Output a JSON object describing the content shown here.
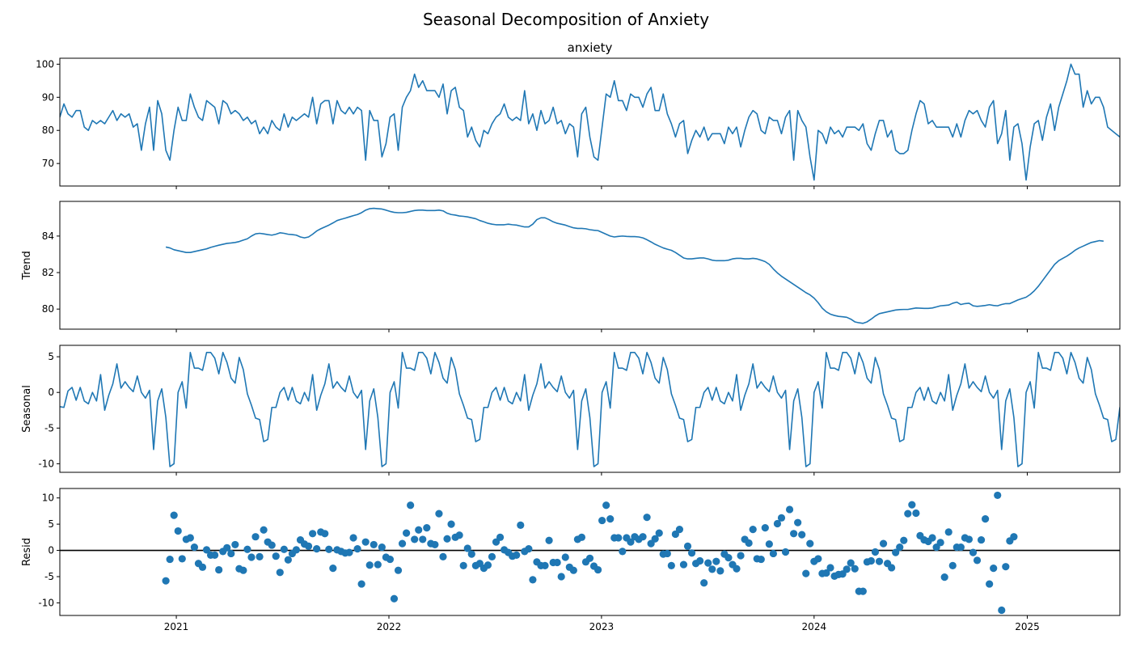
{
  "chart_data": {
    "type": "line",
    "title": "Seasonal Decomposition of Anxiety",
    "x_ticks": [
      "2021",
      "2022",
      "2023",
      "2024",
      "2025"
    ],
    "x_range": [
      "2020-06-15",
      "2025-06-09"
    ],
    "color": "#1f77b4",
    "panels": [
      {
        "key": "observed",
        "title": "anxiety",
        "ylabel": "",
        "type": "line",
        "ylim": [
          63.2,
          101.8
        ],
        "yticks": [
          70,
          80,
          90,
          100
        ],
        "values": [
          84,
          88,
          85,
          84,
          86,
          86,
          81,
          80,
          83,
          82,
          83,
          82,
          84,
          86,
          83,
          85,
          84,
          85,
          81,
          82,
          74,
          82,
          87,
          74,
          89,
          85,
          74,
          71,
          80,
          87,
          83,
          83,
          91,
          87,
          84,
          83,
          89,
          88,
          87,
          82,
          89,
          88,
          85,
          86,
          85,
          83,
          84,
          82,
          83,
          79,
          81,
          79,
          83,
          81,
          80,
          85,
          81,
          84,
          83,
          84,
          85,
          84,
          90,
          82,
          88,
          89,
          89,
          82,
          89,
          86,
          85,
          87,
          85,
          87,
          86,
          71,
          86,
          83,
          83,
          72,
          76,
          84,
          85,
          74,
          87,
          90,
          92,
          97,
          93,
          95,
          92,
          92,
          92,
          90,
          94,
          85,
          92,
          93,
          87,
          86,
          78,
          81,
          77,
          75,
          80,
          79,
          82,
          84,
          85,
          88,
          84,
          83,
          84,
          83,
          92,
          82,
          85,
          80,
          86,
          82,
          83,
          87,
          82,
          83,
          79,
          82,
          81,
          72,
          85,
          87,
          78,
          72,
          71,
          81,
          91,
          90,
          95,
          89,
          89,
          86,
          91,
          90,
          90,
          87,
          91,
          93,
          86,
          86,
          91,
          85,
          82,
          78,
          82,
          83,
          73,
          77,
          80,
          78,
          81,
          77,
          79,
          79,
          79,
          76,
          81,
          79,
          81,
          75,
          80,
          84,
          86,
          85,
          80,
          79,
          84,
          83,
          83,
          79,
          84,
          86,
          71,
          86,
          83,
          81,
          72,
          65,
          80,
          79,
          76,
          81,
          79,
          80,
          78,
          81,
          81,
          81,
          80,
          82,
          76,
          74,
          79,
          83,
          83,
          78,
          80,
          74,
          73,
          73,
          74,
          80,
          85,
          89,
          88,
          82,
          83,
          81,
          81,
          81,
          81,
          78,
          82,
          78,
          83,
          86,
          85,
          86,
          83,
          81,
          87,
          89,
          76,
          79,
          86,
          71,
          81,
          82,
          76,
          65,
          75,
          82,
          83,
          77,
          84,
          88,
          80,
          87,
          91,
          95,
          100,
          97,
          97,
          87,
          92,
          88,
          90,
          90,
          87,
          81,
          80,
          79,
          78,
          81,
          80
        ]
      },
      {
        "key": "trend",
        "ylabel": "Trend",
        "type": "line",
        "ylim": [
          78.9,
          85.9
        ],
        "yticks": [
          80,
          82,
          84
        ],
        "values": [
          null,
          null,
          null,
          null,
          null,
          null,
          null,
          null,
          null,
          null,
          null,
          null,
          null,
          null,
          null,
          null,
          null,
          null,
          null,
          null,
          null,
          null,
          null,
          null,
          null,
          null,
          83.4,
          83.35,
          83.25,
          83.2,
          83.15,
          83.1,
          83.1,
          83.15,
          83.2,
          83.25,
          83.3,
          83.38,
          83.44,
          83.5,
          83.55,
          83.6,
          83.62,
          83.65,
          83.7,
          83.78,
          83.85,
          84.0,
          84.12,
          84.15,
          84.12,
          84.08,
          84.05,
          84.1,
          84.18,
          84.15,
          84.1,
          84.08,
          84.05,
          83.95,
          83.9,
          83.95,
          84.1,
          84.28,
          84.4,
          84.5,
          84.6,
          84.72,
          84.85,
          84.92,
          84.98,
          85.05,
          85.12,
          85.18,
          85.28,
          85.42,
          85.5,
          85.52,
          85.5,
          85.48,
          85.42,
          85.35,
          85.3,
          85.28,
          85.28,
          85.3,
          85.35,
          85.4,
          85.42,
          85.42,
          85.4,
          85.4,
          85.4,
          85.42,
          85.38,
          85.25,
          85.18,
          85.15,
          85.1,
          85.08,
          85.05,
          85.0,
          84.95,
          84.85,
          84.78,
          84.7,
          84.65,
          84.62,
          84.62,
          84.62,
          84.65,
          84.62,
          84.6,
          84.55,
          84.5,
          84.5,
          84.65,
          84.9,
          85.0,
          85.0,
          84.9,
          84.78,
          84.7,
          84.65,
          84.6,
          84.52,
          84.45,
          84.42,
          84.42,
          84.4,
          84.35,
          84.32,
          84.3,
          84.2,
          84.1,
          84.0,
          83.95,
          83.98,
          84.0,
          83.98,
          83.97,
          83.97,
          83.95,
          83.9,
          83.8,
          83.68,
          83.55,
          83.45,
          83.35,
          83.28,
          83.22,
          83.1,
          82.95,
          82.8,
          82.75,
          82.75,
          82.78,
          82.8,
          82.8,
          82.75,
          82.68,
          82.65,
          82.65,
          82.65,
          82.68,
          82.75,
          82.78,
          82.78,
          82.75,
          82.75,
          82.78,
          82.75,
          82.68,
          82.6,
          82.45,
          82.2,
          81.98,
          81.8,
          81.65,
          81.5,
          81.35,
          81.2,
          81.05,
          80.9,
          80.78,
          80.6,
          80.35,
          80.05,
          79.85,
          79.72,
          79.65,
          79.6,
          79.58,
          79.55,
          79.45,
          79.3,
          79.25,
          79.22,
          79.3,
          79.45,
          79.62,
          79.75,
          79.8,
          79.85,
          79.9,
          79.95,
          79.97,
          79.98,
          79.98,
          80.02,
          80.06,
          80.05,
          80.04,
          80.04,
          80.06,
          80.12,
          80.18,
          80.2,
          80.22,
          80.32,
          80.38,
          80.25,
          80.3,
          80.32,
          80.18,
          80.15,
          80.17,
          80.2,
          80.24,
          80.2,
          80.18,
          80.25,
          80.3,
          80.3,
          80.4,
          80.5,
          80.58,
          80.65,
          80.8,
          81.0,
          81.25,
          81.55,
          81.85,
          82.15,
          82.45,
          82.65,
          82.78,
          82.9,
          83.05,
          83.22,
          83.35,
          83.45,
          83.55,
          83.65,
          83.7,
          83.75,
          83.72,
          null,
          null,
          null,
          null,
          null,
          null,
          null,
          null,
          null,
          null,
          null,
          null,
          null,
          null,
          null,
          null,
          null,
          null,
          null,
          null,
          null,
          null,
          null,
          null,
          null,
          null
        ]
      },
      {
        "key": "seasonal",
        "ylabel": "Seasonal",
        "type": "line",
        "ylim": [
          -11.2,
          6.6
        ],
        "yticks": [
          -10,
          -5,
          0,
          5
        ],
        "values": [
          -2.0,
          -2.1,
          0.2,
          0.7,
          -1.1,
          0.7,
          -1.2,
          -1.6,
          0.0,
          -1.2,
          2.5,
          -2.5,
          -0.4,
          1.2,
          4.0,
          0.6,
          1.5,
          0.7,
          0.1,
          2.3,
          0.0,
          -0.8,
          0.3,
          -8.0,
          -1.2,
          0.5,
          -3.5,
          -10.4,
          -10.0,
          0.0,
          1.5,
          -2.2,
          5.6,
          3.4,
          3.4,
          3.1,
          5.6,
          5.6,
          4.8,
          2.6,
          5.6,
          4.2,
          2.0,
          1.3,
          4.9,
          3.2,
          -0.2,
          -1.8,
          -3.6,
          -3.8,
          -6.9,
          -6.6,
          -2.1,
          -2.1,
          0.0,
          0.7,
          -1.1,
          0.7,
          -1.2,
          -1.6,
          0.0,
          -1.2,
          2.5,
          -2.5,
          -0.4,
          1.2,
          4.0,
          0.6,
          1.5,
          0.7,
          0.1,
          2.3,
          0.0,
          -0.8,
          0.3,
          -8.0,
          -1.2,
          0.5,
          -3.5,
          -10.4,
          -10.0,
          0.0,
          1.5,
          -2.2,
          5.6,
          3.4,
          3.4,
          3.1,
          5.6,
          5.6,
          4.8,
          2.6,
          5.6,
          4.2,
          2.0,
          1.3,
          4.9,
          3.2,
          -0.2,
          -1.8,
          -3.6,
          -3.8,
          -6.9,
          -6.6,
          -2.1,
          -2.1,
          0.0,
          0.7,
          -1.1,
          0.7,
          -1.2,
          -1.6,
          0.0,
          -1.2,
          2.5,
          -2.5,
          -0.4,
          1.2,
          4.0,
          0.6,
          1.5,
          0.7,
          0.1,
          2.3,
          0.0,
          -0.8,
          0.3,
          -8.0,
          -1.2,
          0.5,
          -3.5,
          -10.4,
          -10.0,
          0.0,
          1.5,
          -2.2,
          5.6,
          3.4,
          3.4,
          3.1,
          5.6,
          5.6,
          4.8,
          2.6,
          5.6,
          4.2,
          2.0,
          1.3,
          4.9,
          3.2,
          -0.2,
          -1.8,
          -3.6,
          -3.8,
          -6.9,
          -6.6,
          -2.1,
          -2.1,
          0.0,
          0.7,
          -1.1,
          0.7,
          -1.2,
          -1.6,
          0.0,
          -1.2,
          2.5,
          -2.5,
          -0.4,
          1.2,
          4.0,
          0.6,
          1.5,
          0.7,
          0.1,
          2.3,
          0.0,
          -0.8,
          0.3,
          -8.0,
          -1.2,
          0.5,
          -3.5,
          -10.4,
          -10.0,
          0.0,
          1.5,
          -2.2,
          5.6,
          3.4,
          3.4,
          3.1,
          5.6,
          5.6,
          4.8,
          2.6,
          5.6,
          4.2,
          2.0,
          1.3,
          4.9,
          3.2,
          -0.2,
          -1.8,
          -3.6,
          -3.8,
          -6.9,
          -6.6,
          -2.1,
          -2.1,
          0.0,
          0.7,
          -1.1,
          0.7,
          -1.2,
          -1.6,
          0.0,
          -1.2,
          2.5,
          -2.5,
          -0.4,
          1.2,
          4.0,
          0.6,
          1.5,
          0.7,
          0.1,
          2.3,
          0.0,
          -0.8,
          0.3,
          -8.0,
          -1.2,
          0.5,
          -3.5,
          -10.4,
          -10.0,
          0.0,
          1.5,
          -2.2,
          5.6,
          3.4,
          3.4,
          3.1,
          5.6,
          5.6,
          4.8,
          2.6,
          5.6,
          4.2,
          2.0,
          1.3,
          4.9,
          3.2,
          -0.2,
          -1.8,
          -3.6,
          -3.8,
          -6.9,
          -6.6,
          -2.1,
          -2.1
        ]
      },
      {
        "key": "resid",
        "ylabel": "Resid",
        "type": "scatter",
        "ylim": [
          -12.4,
          11.8
        ],
        "yticks": [
          -10,
          -5,
          0,
          5,
          10
        ],
        "zero_line": true,
        "values": [
          null,
          null,
          null,
          null,
          null,
          null,
          null,
          null,
          null,
          null,
          null,
          null,
          null,
          null,
          null,
          null,
          null,
          null,
          null,
          null,
          null,
          null,
          null,
          null,
          null,
          null,
          -5.8,
          -1.7,
          6.7,
          3.7,
          -1.6,
          2.1,
          2.4,
          0.6,
          -2.5,
          -3.2,
          0.1,
          -0.9,
          -0.9,
          -3.7,
          -0.2,
          0.5,
          -0.6,
          1.1,
          -3.5,
          -3.8,
          0.2,
          -1.3,
          2.6,
          -1.2,
          3.9,
          1.6,
          1.0,
          -1.1,
          -4.2,
          0.2,
          -1.8,
          -0.6,
          0.1,
          2.0,
          1.2,
          0.8,
          3.2,
          0.3,
          3.5,
          3.2,
          0.2,
          -3.4,
          0.1,
          -0.2,
          -0.5,
          -0.4,
          2.4,
          0.3,
          -6.4,
          1.6,
          -2.8,
          1.1,
          -2.7,
          0.6,
          -1.3,
          -1.7,
          -9.2,
          -3.8,
          1.3,
          3.3,
          8.6,
          2.1,
          3.9,
          2.1,
          4.3,
          1.3,
          1.1,
          7.0,
          -1.2,
          2.2,
          5.0,
          2.5,
          2.9,
          -2.9,
          0.4,
          -0.7,
          -2.9,
          -2.5,
          -3.4,
          -2.8,
          -1.2,
          1.6,
          2.5,
          0.1,
          -0.4,
          -1.1,
          -0.9,
          4.8,
          -0.2,
          0.3,
          -5.6,
          -2.2,
          -2.9,
          -2.9,
          1.9,
          -2.3,
          -2.3,
          -5.0,
          -1.3,
          -3.2,
          -3.8,
          2.1,
          2.5,
          -2.2,
          -1.5,
          -3.0,
          -3.7,
          5.7,
          8.6,
          6.0,
          2.4,
          2.4,
          -0.2,
          2.4,
          1.6,
          2.6,
          2.1,
          2.6,
          6.3,
          1.3,
          2.2,
          3.3,
          -0.7,
          -0.6,
          -2.9,
          3.1,
          4.0,
          -2.7,
          0.8,
          -0.5,
          -2.5,
          -2.0,
          -6.2,
          -2.4,
          -3.6,
          -2.1,
          -3.9,
          -0.7,
          -1.4,
          -2.7,
          -3.5,
          -1.0,
          2.1,
          1.4,
          4.0,
          -1.6,
          -1.7,
          4.3,
          1.2,
          -0.6,
          5.1,
          6.2,
          -0.3,
          7.8,
          3.2,
          5.3,
          3.0,
          -4.4,
          1.3,
          -2.1,
          -1.6,
          -4.4,
          -4.3,
          -3.3,
          -4.9,
          -4.6,
          -4.5,
          -3.6,
          -2.4,
          -3.5,
          -7.8,
          -7.8,
          -2.2,
          -2.0,
          -0.3,
          -2.1,
          1.3,
          -2.5,
          -3.3,
          -0.4,
          0.6,
          1.9,
          7.0,
          8.7,
          7.1,
          2.8,
          2.0,
          1.7,
          2.4,
          0.6,
          1.5,
          -5.1,
          3.5,
          -2.9,
          0.6,
          0.6,
          2.4,
          2.1,
          -0.4,
          -1.9,
          2.0,
          6.0,
          -6.4,
          -3.4,
          10.5,
          -11.4,
          -3.1,
          1.8,
          2.6,
          null,
          null,
          null,
          null,
          null,
          null,
          null,
          null,
          null,
          null,
          null,
          null,
          null,
          null,
          null,
          null,
          null,
          null,
          null,
          null,
          null,
          null,
          null,
          null,
          null,
          null
        ]
      }
    ]
  }
}
